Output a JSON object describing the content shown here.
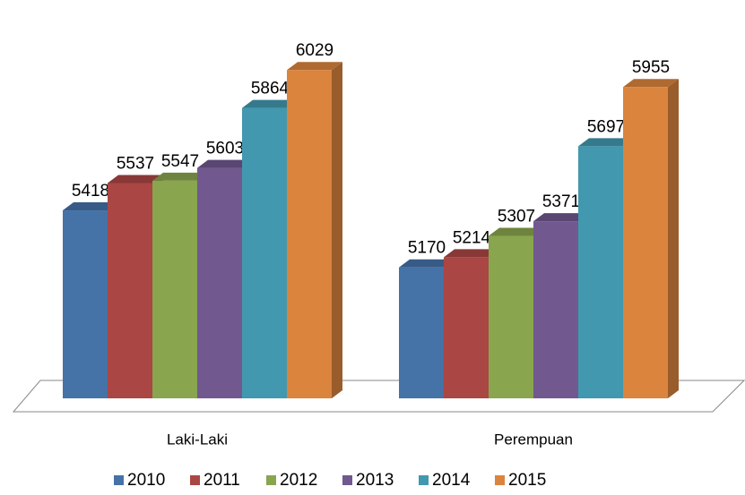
{
  "chart_data": {
    "type": "bar3d",
    "categories": [
      "Laki-Laki",
      "Perempuan"
    ],
    "series": [
      {
        "name": "2010",
        "color": "#4572a7",
        "values": [
          5418,
          5170
        ]
      },
      {
        "name": "2011",
        "color": "#aa4643",
        "values": [
          5537,
          5214
        ]
      },
      {
        "name": "2012",
        "color": "#89a54e",
        "values": [
          5547,
          5307
        ]
      },
      {
        "name": "2013",
        "color": "#71588f",
        "values": [
          5603,
          5371
        ]
      },
      {
        "name": "2014",
        "color": "#4198af",
        "values": [
          5864,
          5697
        ]
      },
      {
        "name": "2015",
        "color": "#db843d",
        "values": [
          6029,
          5955
        ]
      }
    ],
    "ylim": [
      4600,
      6100
    ],
    "legend": "bottom"
  }
}
